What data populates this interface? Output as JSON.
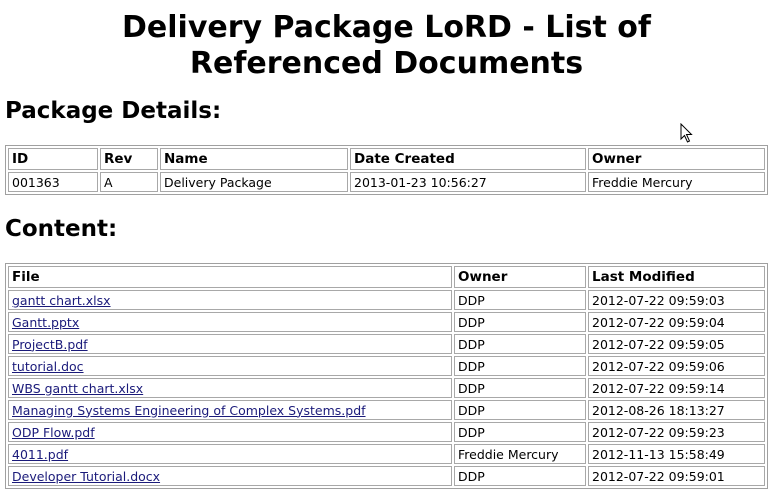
{
  "page": {
    "title_line1": "Delivery Package LoRD - List of",
    "title_line2": "Referenced Documents"
  },
  "package_details": {
    "heading": "Package Details:",
    "columns": [
      "ID",
      "Rev",
      "Name",
      "Date Created",
      "Owner"
    ],
    "row": {
      "id": "001363",
      "rev": "A",
      "name": "Delivery Package",
      "date_created": "2013-01-23 10:56:27",
      "owner": "Freddie Mercury"
    }
  },
  "content": {
    "heading": "Content:",
    "columns": [
      "File",
      "Owner",
      "Last Modified"
    ],
    "rows": [
      {
        "file": "gantt chart.xlsx",
        "owner": "DDP",
        "modified": "2012-07-22 09:59:03"
      },
      {
        "file": "Gantt.pptx",
        "owner": "DDP",
        "modified": "2012-07-22 09:59:04"
      },
      {
        "file": "ProjectB.pdf",
        "owner": "DDP",
        "modified": "2012-07-22 09:59:05"
      },
      {
        "file": "tutorial.doc",
        "owner": "DDP",
        "modified": "2012-07-22 09:59:06"
      },
      {
        "file": "WBS gantt chart.xlsx",
        "owner": "DDP",
        "modified": "2012-07-22 09:59:14"
      },
      {
        "file": "Managing Systems Engineering of Complex Systems.pdf",
        "owner": "DDP",
        "modified": "2012-08-26 18:13:27"
      },
      {
        "file": "ODP Flow.pdf",
        "owner": "DDP",
        "modified": "2012-07-22 09:59:23"
      },
      {
        "file": "4011.pdf",
        "owner": "Freddie Mercury",
        "modified": "2012-11-13 15:58:49"
      },
      {
        "file": "Developer Tutorial.docx",
        "owner": "DDP",
        "modified": "2012-07-22 09:59:01"
      }
    ]
  },
  "icons": {
    "cursor": "mouse-pointer-icon"
  }
}
